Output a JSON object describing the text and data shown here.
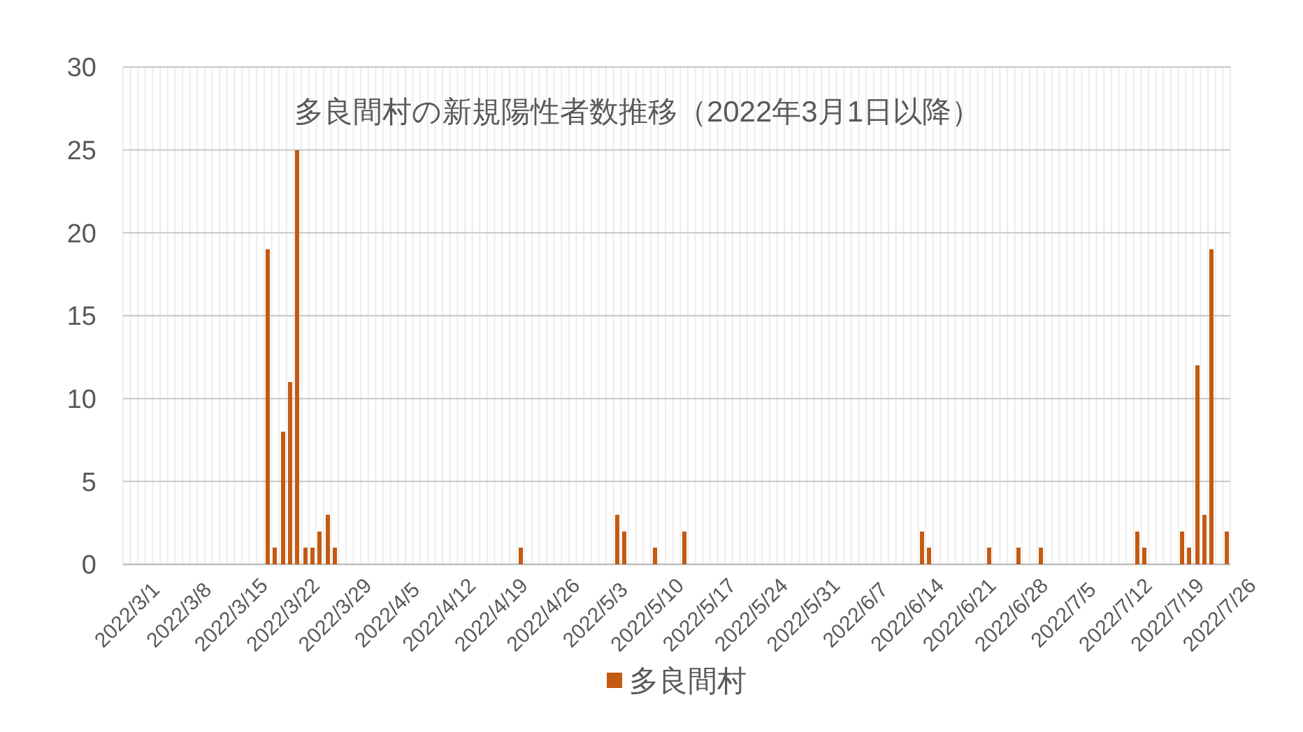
{
  "chart_data": {
    "type": "bar",
    "title": "多良間村の新規陽性者数推移（2022年3月1日以降）",
    "categories": [
      "2022/3/1",
      null,
      null,
      null,
      null,
      null,
      null,
      "2022/3/8",
      null,
      null,
      null,
      null,
      null,
      null,
      "2022/3/15",
      null,
      null,
      null,
      null,
      null,
      null,
      "2022/3/22",
      null,
      null,
      null,
      null,
      null,
      null,
      "2022/3/29",
      null,
      null,
      null,
      null,
      null,
      null,
      "2022/4/5",
      null,
      null,
      null,
      null,
      null,
      null,
      "2022/4/12",
      null,
      null,
      null,
      null,
      null,
      null,
      "2022/4/19",
      null,
      null,
      null,
      null,
      null,
      null,
      "2022/4/26",
      null,
      null,
      null,
      null,
      null,
      null,
      "2022/5/3",
      null,
      null,
      null,
      null,
      null,
      null,
      "2022/5/10",
      null,
      null,
      null,
      null,
      null,
      null,
      "2022/5/17",
      null,
      null,
      null,
      null,
      null,
      null,
      "2022/5/24",
      null,
      null,
      null,
      null,
      null,
      null,
      "2022/5/31",
      null,
      null,
      null,
      null,
      null,
      null,
      "2022/6/7",
      null,
      null,
      null,
      null,
      null,
      null,
      "2022/6/14",
      null,
      null,
      null,
      null,
      null,
      null,
      "2022/6/21",
      null,
      null,
      null,
      null,
      null,
      null,
      "2022/6/28",
      null,
      null,
      null,
      null,
      null,
      null,
      "2022/7/5",
      null,
      null,
      null,
      null,
      null,
      null,
      "2022/7/12",
      null,
      null,
      null,
      null,
      null,
      null,
      "2022/7/19",
      null,
      null,
      null,
      null,
      null,
      null,
      "2022/7/26",
      null
    ],
    "series": [
      {
        "name": "多良間村",
        "color": "#c55a11",
        "values": [
          0,
          0,
          0,
          0,
          0,
          0,
          0,
          0,
          0,
          0,
          0,
          0,
          0,
          0,
          0,
          0,
          0,
          0,
          0,
          19,
          1,
          8,
          11,
          25,
          1,
          1,
          2,
          3,
          1,
          0,
          0,
          0,
          0,
          0,
          0,
          0,
          0,
          0,
          0,
          0,
          0,
          0,
          0,
          0,
          0,
          0,
          0,
          0,
          0,
          0,
          0,
          0,
          0,
          1,
          0,
          0,
          0,
          0,
          0,
          0,
          0,
          0,
          0,
          0,
          0,
          0,
          3,
          2,
          0,
          0,
          0,
          1,
          0,
          0,
          0,
          2,
          0,
          0,
          0,
          0,
          0,
          0,
          0,
          0,
          0,
          0,
          0,
          0,
          0,
          0,
          0,
          0,
          0,
          0,
          0,
          0,
          0,
          0,
          0,
          0,
          0,
          0,
          0,
          0,
          0,
          0,
          0,
          2,
          1,
          0,
          0,
          0,
          0,
          0,
          0,
          0,
          1,
          0,
          0,
          0,
          1,
          0,
          0,
          1,
          0,
          0,
          0,
          0,
          0,
          0,
          0,
          0,
          0,
          0,
          0,
          0,
          2,
          1,
          0,
          0,
          0,
          0,
          2,
          1,
          12,
          3,
          19,
          0,
          2
        ]
      }
    ],
    "ylim": [
      0,
      30
    ],
    "yticks": [
      0,
      5,
      10,
      15,
      20,
      25,
      30
    ],
    "grid": true,
    "legend": "bottom"
  }
}
